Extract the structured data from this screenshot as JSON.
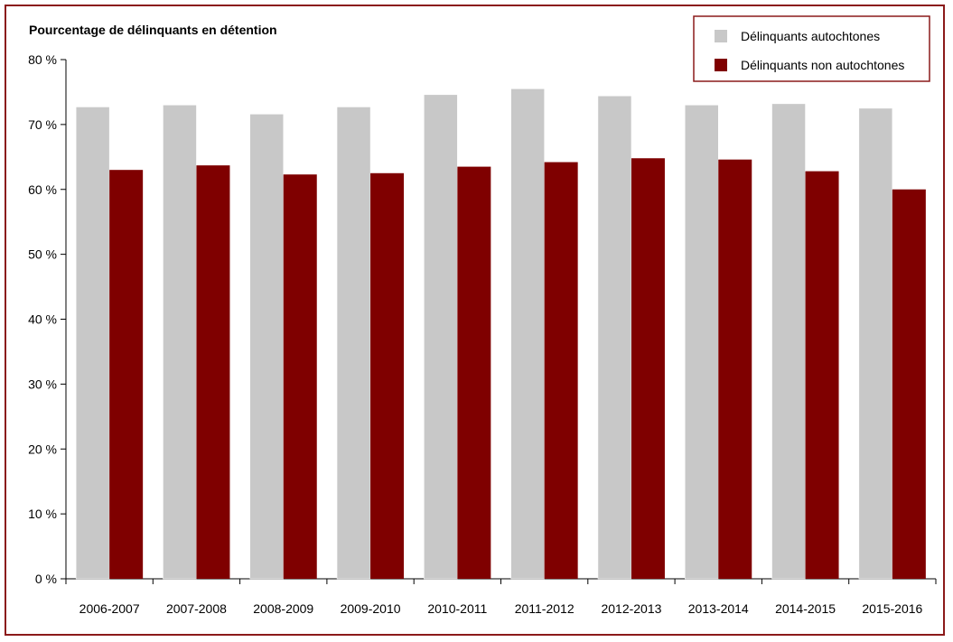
{
  "chart_data": {
    "type": "bar",
    "ylabel": "Pourcentage de délinquants en détention",
    "categories": [
      "2006-2007",
      "2007-2008",
      "2008-2009",
      "2009-2010",
      "2010-2011",
      "2011-2012",
      "2012-2013",
      "2013-2014",
      "2014-2015",
      "2015-2016"
    ],
    "series": [
      {
        "name": "Délinquants autochtones",
        "color": "#c8c8c8",
        "values": [
          72.7,
          73.0,
          71.6,
          72.7,
          74.6,
          75.5,
          74.4,
          73.0,
          73.2,
          72.5
        ]
      },
      {
        "name": "Délinquants non autochtones",
        "color": "#7f0000",
        "values": [
          63.0,
          63.7,
          62.3,
          62.5,
          63.5,
          64.2,
          64.8,
          64.6,
          62.8,
          60.0
        ]
      }
    ],
    "ylim": [
      0,
      80
    ],
    "yticks": [
      0,
      10,
      20,
      30,
      40,
      50,
      60,
      70,
      80
    ],
    "ytick_labels": [
      "0 %",
      "10 %",
      "20 %",
      "30 %",
      "40 %",
      "50 %",
      "60 %",
      "70 %",
      "80 %"
    ],
    "legend_position": "top-right",
    "grid": false
  }
}
